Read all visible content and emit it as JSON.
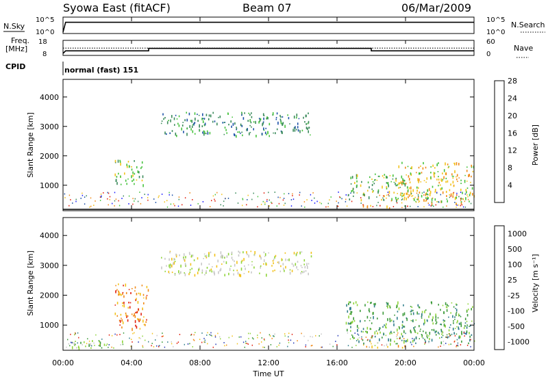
{
  "header": {
    "station": "Syowa East (fitACF)",
    "beam": "Beam 07",
    "date": "06/Mar/2009"
  },
  "top_panels": {
    "nsky_label": "N.Sky",
    "nsearch_label": "N.Search",
    "nsky_ticks": [
      "10^5",
      "10^0"
    ],
    "nsearch_ticks": [
      "10^5",
      "10^0"
    ],
    "freq_label": "Freq.",
    "freq_unit": "[MHz]",
    "freq_ticks": [
      "18",
      "8"
    ],
    "nave_label": "Nave",
    "nave_ticks": [
      "60",
      "0"
    ],
    "cpid_label": "CPID",
    "cpid_value": "normal (fast) 151"
  },
  "time_axis": {
    "label": "Time UT",
    "ticks": [
      "00:00",
      "04:00",
      "08:00",
      "12:00",
      "16:00",
      "20:00",
      "00:00"
    ]
  },
  "range_axis": {
    "label": "Slant Range [km]",
    "ticks": [
      "1000",
      "2000",
      "3000",
      "4000"
    ]
  },
  "power_colorbar": {
    "label": "Power [dB]",
    "ticks": [
      "4",
      "8",
      "12",
      "16",
      "20",
      "24",
      "28"
    ],
    "colors": [
      "#1a1aff",
      "#1b50a8",
      "#3a8a5a",
      "#46c23c",
      "#f2c21a",
      "#f08a18",
      "#e2200e"
    ]
  },
  "velocity_colorbar": {
    "label": "Velocity [m s⁻¹]",
    "ticks": [
      "1000",
      "500",
      "100",
      "25",
      "-25",
      "-100",
      "-500",
      "-1000"
    ],
    "colors": [
      "#2a3cb8",
      "#2f7d8a",
      "#3c9a3a",
      "#8fd43a",
      "#c8c8c8",
      "#f2c21a",
      "#f08a18",
      "#e2200e"
    ]
  },
  "chart_data": [
    {
      "type": "line",
      "title": "N.Sky",
      "x_range": [
        0,
        24
      ],
      "y_scale": "log",
      "ylim": [
        1,
        100000
      ],
      "series": [
        {
          "name": "N.Sky",
          "x": [
            0,
            0.15,
            24
          ],
          "y": [
            1,
            6000,
            6000
          ]
        },
        {
          "name": "N.Search",
          "x": [
            0,
            24
          ],
          "y": [
            1,
            1
          ]
        }
      ]
    },
    {
      "type": "line",
      "title": "Freq.",
      "x_range": [
        0,
        24
      ],
      "series": [
        {
          "name": "Freq.",
          "x": [
            0,
            0.15,
            5.0,
            5.0,
            18.0,
            18.0,
            24
          ],
          "y": [
            8,
            10.2,
            10.2,
            12.3,
            12.3,
            10.2,
            10.2
          ]
        },
        {
          "name": "Nave",
          "x": [
            0,
            24
          ],
          "y": [
            27,
            27
          ]
        }
      ]
    },
    {
      "type": "heatmap",
      "title": "Power [dB]",
      "x_range": [
        0,
        24
      ],
      "ylim": [
        180,
        4600
      ],
      "regions": [
        {
          "t": [
            5.7,
            14.5
          ],
          "r": [
            2700,
            3500
          ],
          "level": 2
        },
        {
          "t": [
            3.0,
            4.7
          ],
          "r": [
            1000,
            1900
          ],
          "level": 3
        },
        {
          "t": [
            16.5,
            20.0
          ],
          "r": [
            500,
            1400
          ],
          "level": 3
        },
        {
          "t": [
            19.5,
            24.0
          ],
          "r": [
            400,
            1800
          ],
          "level": 4
        },
        {
          "t": [
            17.5,
            20.5
          ],
          "r": [
            250,
            350
          ],
          "level": 5
        }
      ]
    },
    {
      "type": "heatmap",
      "title": "Velocity",
      "x_range": [
        0,
        24
      ],
      "ylim": [
        180,
        4600
      ],
      "regions": [
        {
          "t": [
            5.7,
            14.5
          ],
          "r": [
            2700,
            3500
          ],
          "level": 4
        },
        {
          "t": [
            3.0,
            5.0
          ],
          "r": [
            900,
            2400
          ],
          "level": 6
        },
        {
          "t": [
            16.5,
            24.0
          ],
          "r": [
            400,
            1800
          ],
          "level": 2
        },
        {
          "t": [
            17.5,
            20.5
          ],
          "r": [
            250,
            350
          ],
          "level": 5
        },
        {
          "t": [
            0.5,
            3.5
          ],
          "r": [
            250,
            500
          ],
          "level": 3
        }
      ]
    }
  ]
}
